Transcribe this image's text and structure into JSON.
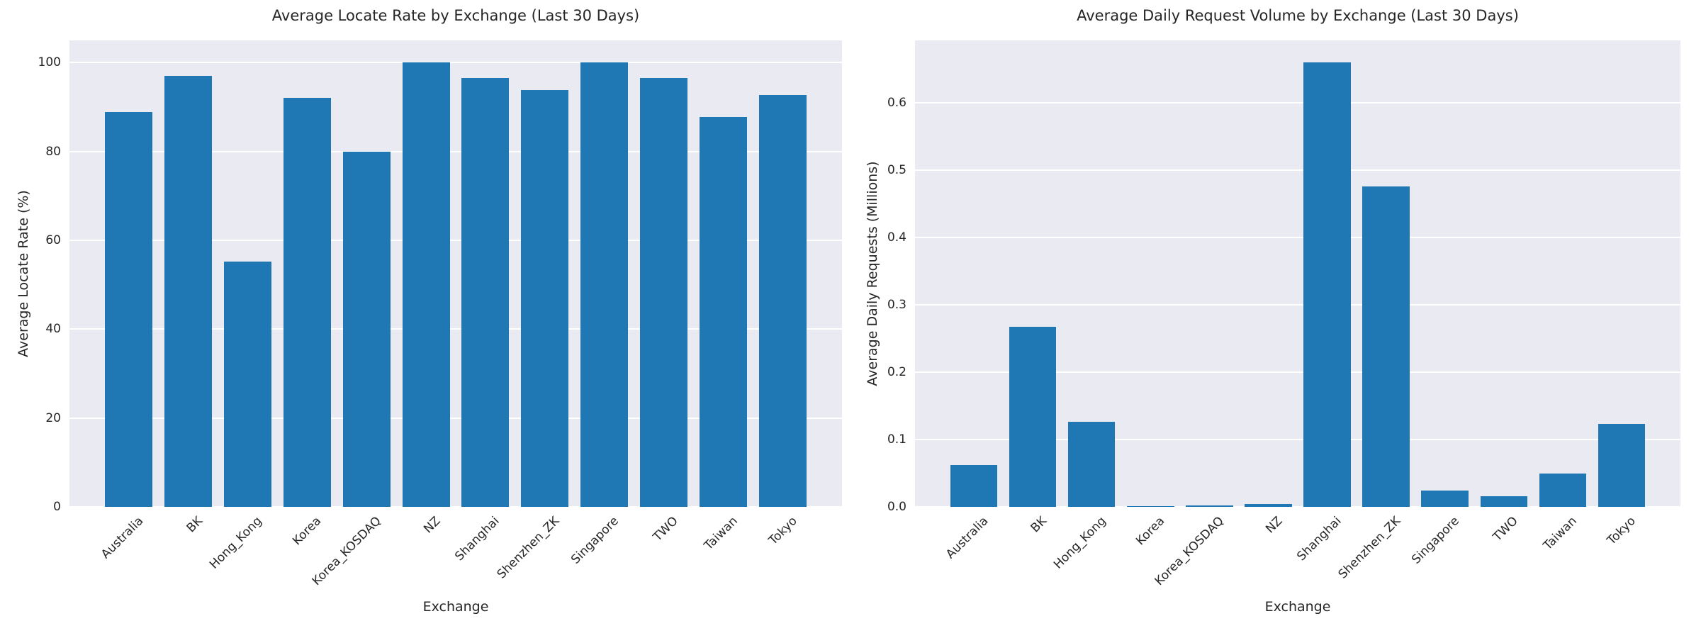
{
  "figure": {
    "background_color": "#ffffff",
    "plot_background_color": "#eaeaf2",
    "grid_color": "#ffffff",
    "bar_color": "#1f77b4",
    "text_color": "#262626"
  },
  "chart_data": [
    {
      "type": "bar",
      "title": "Average Locate Rate by Exchange (Last 30 Days)",
      "xlabel": "Exchange",
      "ylabel": "Average Locate Rate (%)",
      "categories": [
        "Australia",
        "BK",
        "Hong_Kong",
        "Korea",
        "Korea_KOSDAQ",
        "NZ",
        "Shanghai",
        "Shenzhen_ZK",
        "Singapore",
        "TWO",
        "Taiwan",
        "Tokyo"
      ],
      "values": [
        88.9,
        97.0,
        55.2,
        92.1,
        80.0,
        100.0,
        96.5,
        93.9,
        100.0,
        96.5,
        87.8,
        92.7
      ],
      "ylim": [
        0,
        105
      ],
      "ytick_values": [
        0,
        20,
        40,
        60,
        80,
        100
      ],
      "ytick_labels": [
        "0",
        "20",
        "40",
        "60",
        "80",
        "100"
      ],
      "grid": "on",
      "xtick_rotation": 45,
      "legend": "none"
    },
    {
      "type": "bar",
      "title": "Average Daily Request Volume by Exchange (Last 30 Days)",
      "xlabel": "Exchange",
      "ylabel": "Average Daily Requests (Millions)",
      "categories": [
        "Australia",
        "BK",
        "Hong_Kong",
        "Korea",
        "Korea_KOSDAQ",
        "NZ",
        "Shanghai",
        "Shenzhen_ZK",
        "Singapore",
        "TWO",
        "Taiwan",
        "Tokyo"
      ],
      "values": [
        0.062,
        0.268,
        0.126,
        0.001,
        0.002,
        0.004,
        0.66,
        0.476,
        0.024,
        0.016,
        0.05,
        0.123
      ],
      "ylim": [
        0,
        0.693
      ],
      "ytick_values": [
        0.0,
        0.1,
        0.2,
        0.3,
        0.4,
        0.5,
        0.6
      ],
      "ytick_labels": [
        "0.0",
        "0.1",
        "0.2",
        "0.3",
        "0.4",
        "0.5",
        "0.6"
      ],
      "grid": "on",
      "xtick_rotation": 45,
      "legend": "none"
    }
  ]
}
